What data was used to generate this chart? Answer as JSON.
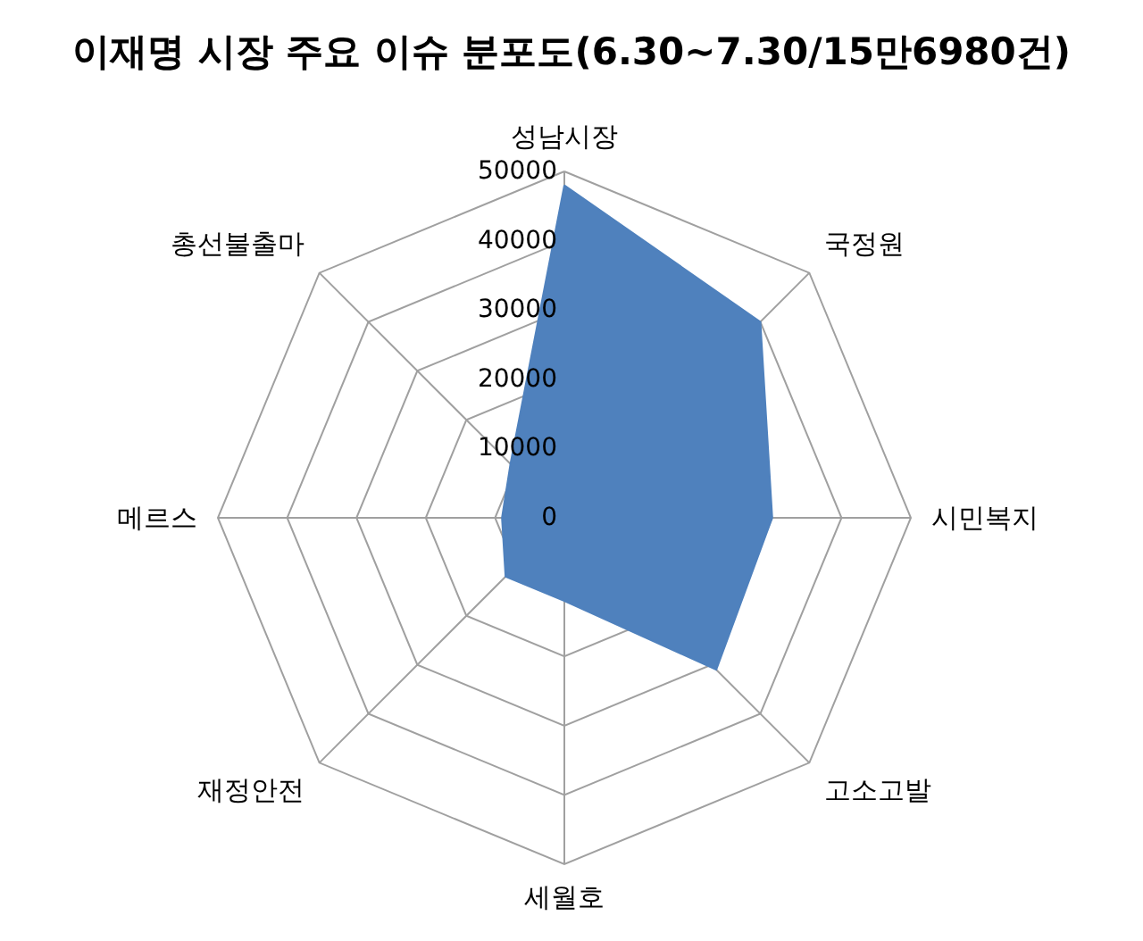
{
  "chart_data": {
    "type": "radar",
    "title": "이재명 시장 주요 이슈 분포도(6.30~7.30/15만6980건)",
    "categories": [
      "성남시장",
      "국정원",
      "시민복지",
      "고소고발",
      "세월호",
      "재정안전",
      "메르스",
      "총선불출마"
    ],
    "series": [
      {
        "color": "#4f81bd",
        "values": [
          48000,
          40000,
          30000,
          31000,
          12000,
          12000,
          9000,
          11000
        ]
      }
    ],
    "ylim": [
      0,
      50000
    ],
    "yticks": [
      0,
      10000,
      20000,
      30000,
      40000,
      50000
    ],
    "grid": true
  }
}
